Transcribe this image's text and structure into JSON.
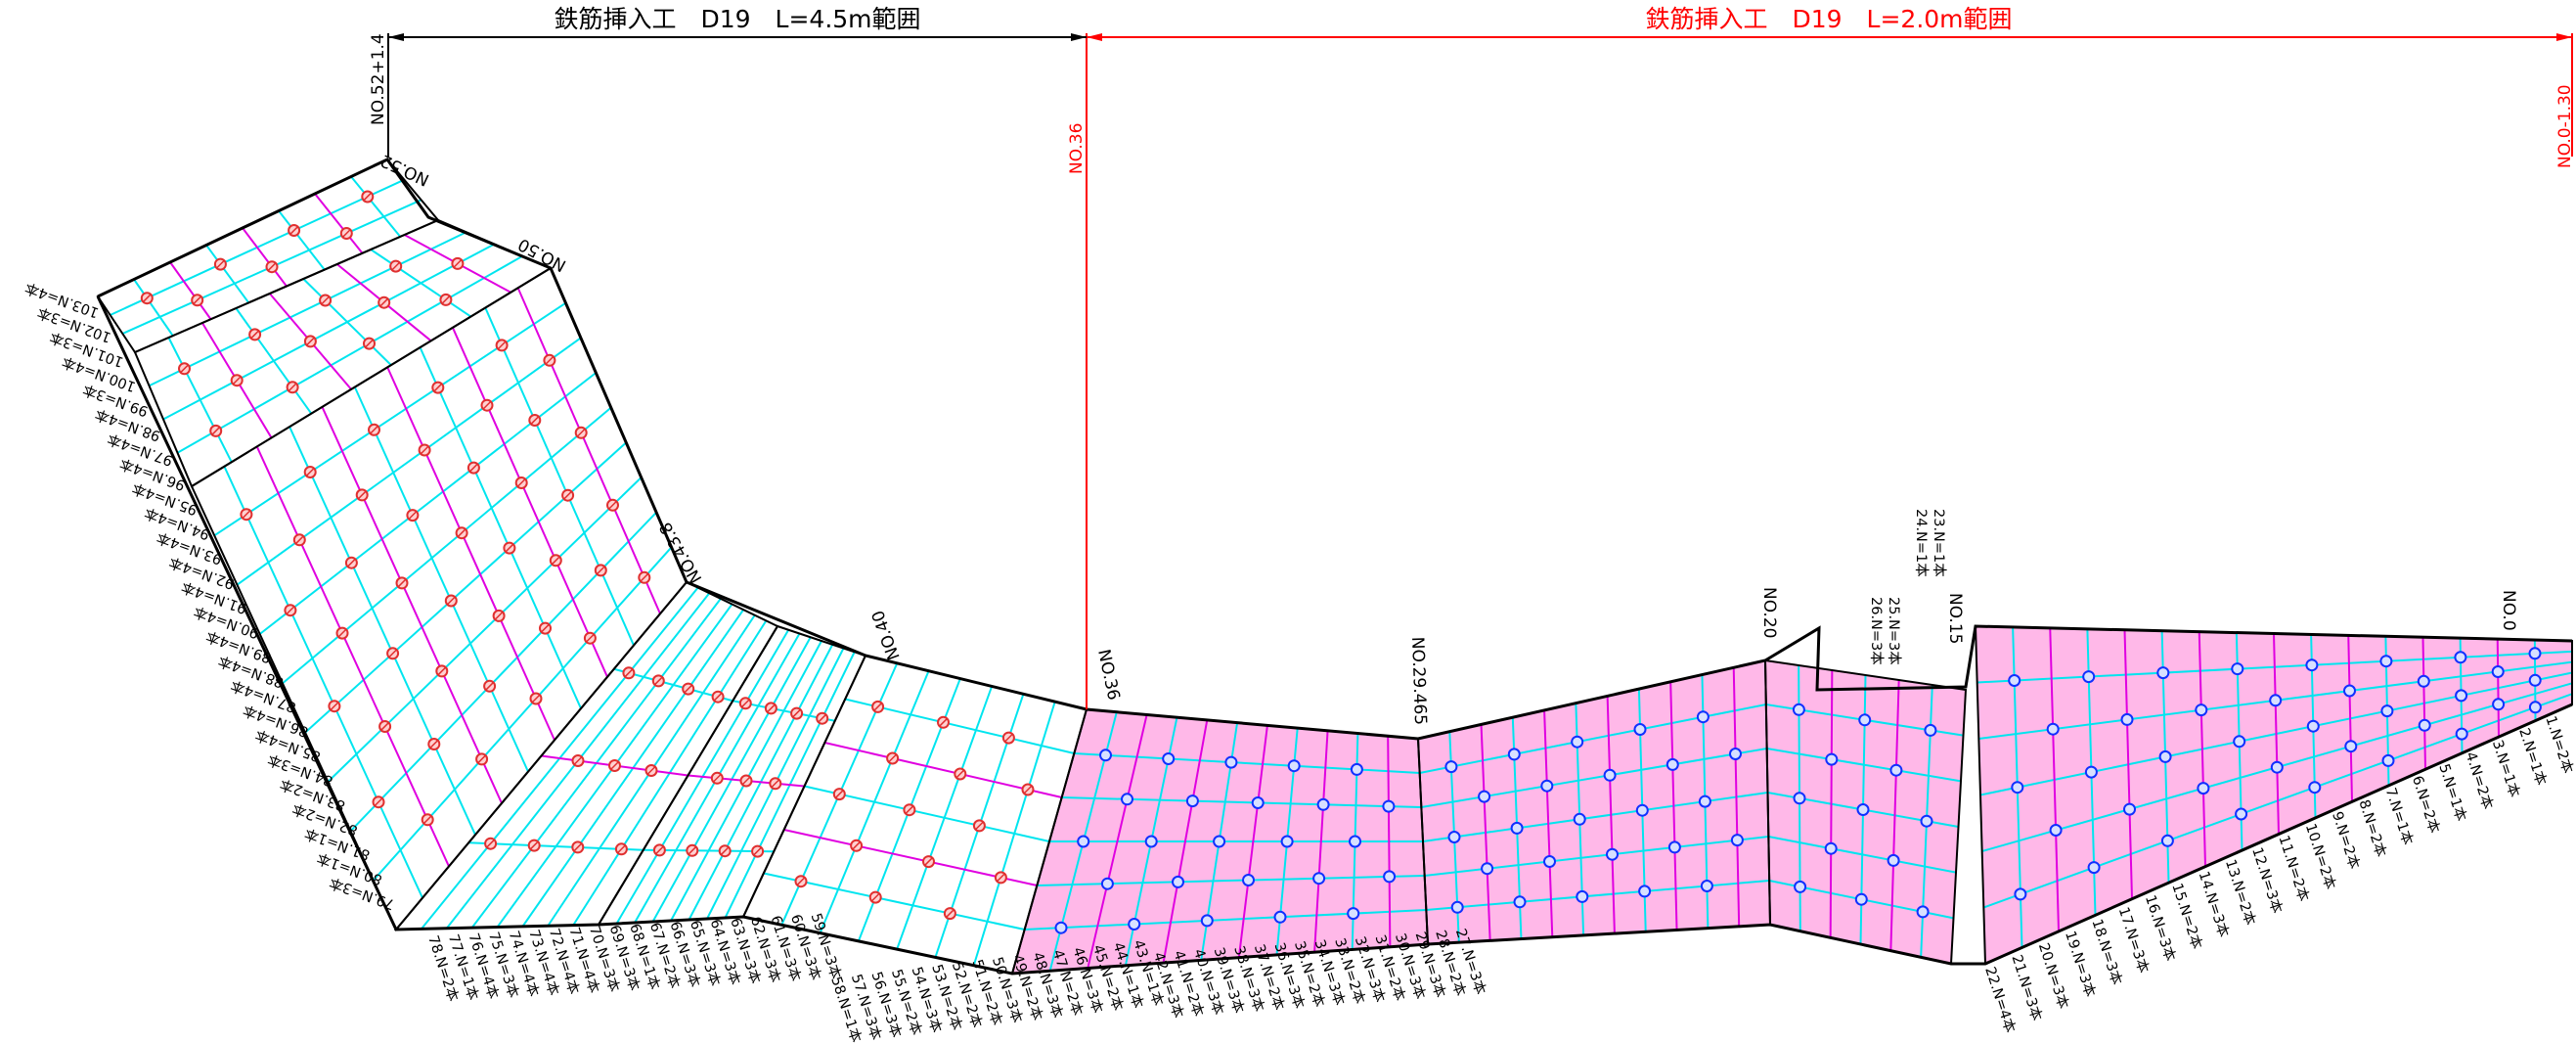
{
  "colors": {
    "outline": "#000000",
    "mesh_cyan": "#00e5ef",
    "rebar_magenta": "#e000e0",
    "fill_pink": "#ffb8e8",
    "marker_red": "#e03030",
    "marker_blue": "#1030ff",
    "dim_red": "#ff0000"
  },
  "dimensions": {
    "left": {
      "label": "鉄筋挿入工　D19　L=4.5m範囲"
    },
    "right": {
      "label": "鉄筋挿入工　D19　L=2.0m範囲"
    }
  },
  "extension_labels": {
    "left_end": "NO.52+1.4",
    "mid": "NO.36",
    "right_end": "NO.0-1.30"
  },
  "stations": [
    {
      "id": "no52",
      "text": "NO.52"
    },
    {
      "id": "no50",
      "text": "NO.50"
    },
    {
      "id": "no438",
      "text": "NO.43.8"
    },
    {
      "id": "no40",
      "text": "NO.40"
    },
    {
      "id": "no36",
      "text": "NO.36"
    },
    {
      "id": "no29",
      "text": "NO.29.465"
    },
    {
      "id": "no20",
      "text": "NO.20"
    },
    {
      "id": "no15",
      "text": "NO.15"
    },
    {
      "id": "no0",
      "text": "NO.0"
    }
  ],
  "pile_labels_upper": [
    "23.N=1本",
    "24.N=1本",
    "25.N=3本",
    "26.N=3本"
  ],
  "pile_labels_left": [
    "103.N=4本",
    "102.N=3本",
    "101.N=3本",
    "100.N=4本",
    "99.N=3本",
    "98.N=4本",
    "97.N=4本",
    "96.N=4本",
    "95.N=4本",
    "94.N=4本",
    "93.N=4本",
    "92.N=4本",
    "91.N=4本",
    "90.N=4本",
    "89.N=4本",
    "88.N=4本",
    "87.N=4本",
    "86.N=4本",
    "85.N=4本",
    "84.N=3本",
    "83.N=2本",
    "82.N=2本",
    "81.N=1本",
    "80.N=1本",
    "79.N=3本"
  ],
  "pile_labels_bottom": [
    "78.N=2本",
    "77.N=1本",
    "76.N=4本",
    "75.N=3本",
    "74.N=4本",
    "73.N=4本",
    "72.N=4本",
    "71.N=4本",
    "70.N=3本",
    "69.N=3本",
    "68.N=1本",
    "67.N=2本",
    "66.N=3本",
    "65.N=3本",
    "64.N=3本",
    "63.N=3本",
    "62.N=3本",
    "61.N=3本",
    "60.N=3本",
    "59.N=3本",
    "58.N=1本",
    "57.N=3本",
    "56.N=3本",
    "55.N=2本",
    "54.N=3本",
    "53.N=2本",
    "52.N=2本",
    "51.N=2本",
    "50.N=3本",
    "49.N=2本",
    "48.N=3本",
    "47.N=2本",
    "46.N=3本",
    "45.N=2本",
    "44.N=1本",
    "43.N=1本",
    "42.N=3本",
    "41.N=2本",
    "40.N=3本",
    "39.N=3本",
    "38.N=3本",
    "37.N=2本",
    "36.N=3本",
    "35.N=2本",
    "34.N=3本",
    "33.N=2本",
    "32.N=3本",
    "31.N=2本",
    "30.N=3本",
    "29.N=3本",
    "28.N=2本",
    "27.N=3本",
    "22.N=4本",
    "21.N=3本",
    "20.N=3本",
    "19.N=3本",
    "18.N=3本",
    "17.N=3本",
    "16.N=3本",
    "15.N=2本",
    "14.N=3本",
    "13.N=2本",
    "12.N=3本",
    "11.N=2本",
    "10.N=2本",
    "9.N=2本",
    "8.N=2本",
    "7.N=1本",
    "6.N=2本",
    "5.N=1本",
    "4.N=2本",
    "3.N=1本",
    "2.N=1本",
    "1.N=2本"
  ]
}
